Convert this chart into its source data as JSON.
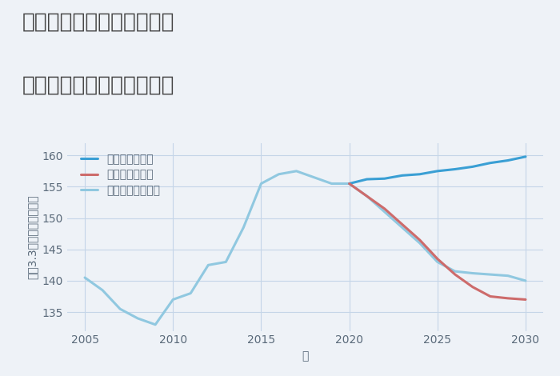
{
  "title_line1": "兵庫県西宮市津門綾羽町の",
  "title_line2": "中古マンションの価格推移",
  "xlabel": "年",
  "ylabel": "坪（3.3㎡）単価（万円）",
  "background_color": "#eef2f7",
  "plot_background": "#eef2f7",
  "grid_color": "#c5d5e8",
  "ylim": [
    132,
    162
  ],
  "yticks": [
    135,
    140,
    145,
    150,
    155,
    160
  ],
  "xticks": [
    2005,
    2010,
    2015,
    2020,
    2025,
    2030
  ],
  "good_scenario": {
    "label": "グッドシナリオ",
    "color": "#3a9fd4",
    "linewidth": 2.2,
    "years": [
      2020,
      2021,
      2022,
      2023,
      2024,
      2025,
      2026,
      2027,
      2028,
      2029,
      2030
    ],
    "values": [
      155.5,
      156.2,
      156.3,
      156.8,
      157.0,
      157.5,
      157.8,
      158.2,
      158.8,
      159.2,
      159.8
    ]
  },
  "bad_scenario": {
    "label": "バッドシナリオ",
    "color": "#cd6b6b",
    "linewidth": 2.2,
    "years": [
      2020,
      2021,
      2022,
      2023,
      2024,
      2025,
      2026,
      2027,
      2028,
      2029,
      2030
    ],
    "values": [
      155.5,
      153.5,
      151.5,
      149.0,
      146.5,
      143.5,
      141.0,
      139.0,
      137.5,
      137.2,
      137.0
    ]
  },
  "normal_scenario": {
    "label": "ノーマルシナリオ",
    "color": "#90c8e0",
    "linewidth": 2.2,
    "years": [
      2005,
      2006,
      2007,
      2008,
      2009,
      2010,
      2011,
      2012,
      2013,
      2014,
      2015,
      2016,
      2017,
      2018,
      2019,
      2020,
      2021,
      2022,
      2023,
      2024,
      2025,
      2026,
      2027,
      2028,
      2029,
      2030
    ],
    "values": [
      140.5,
      138.5,
      135.5,
      134.0,
      133.0,
      137.0,
      138.0,
      142.5,
      143.0,
      148.5,
      155.5,
      157.0,
      157.5,
      156.5,
      155.5,
      155.5,
      153.5,
      151.0,
      148.5,
      146.0,
      143.0,
      141.5,
      141.2,
      141.0,
      140.8,
      140.0
    ]
  },
  "title_color": "#444444",
  "tick_color": "#5a6a7a",
  "title_fontsize": 19,
  "legend_fontsize": 10,
  "axis_label_fontsize": 10
}
